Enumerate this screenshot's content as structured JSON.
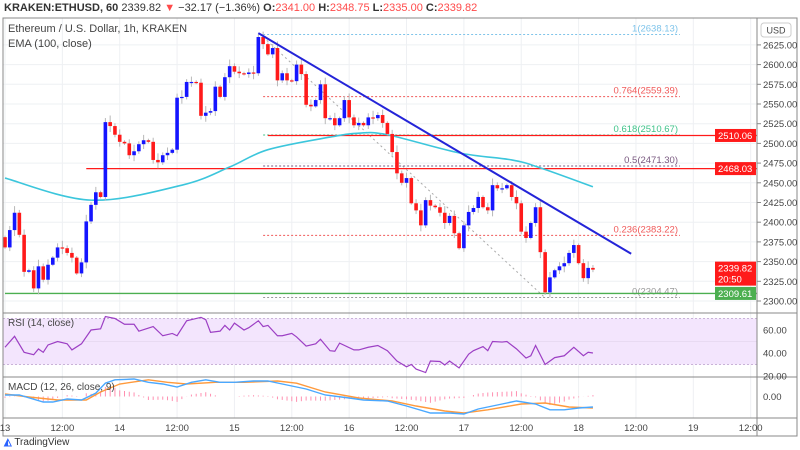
{
  "header": {
    "symbol": "KRAKEN:ETHUSD, 60",
    "last": "2339.82",
    "change": "−32.17 (−1.36%)",
    "open_label": "O:",
    "open": "2341.00",
    "high_label": "H:",
    "high": "2348.75",
    "low_label": "L:",
    "low": "2335.00",
    "close_label": "C:",
    "close": "2339.82"
  },
  "legend": {
    "title": "Ethereum / U.S. Dollar, 1h, KRAKEN",
    "ema": "EMA (100, close)",
    "rsi": "RSI (14, close)",
    "macd": "MACD (12, 26, close, 9)"
  },
  "footer": {
    "brand": "TradingView"
  },
  "colors": {
    "up": "#1515ff",
    "down": "#ff1a1a",
    "ema": "#3cc6dc",
    "trendline": "#2424d8",
    "support": "#4caf50",
    "resistance": "#ff2020",
    "rsi": "#9c3fc4",
    "rsi_band": "#f3e5fd",
    "macd": "#4aa8ff",
    "signal": "#ff9a3c",
    "histogram": "#ff8fb0"
  },
  "chart_data": [
    {
      "type": "candlestick",
      "title": "Ethereum / U.S. Dollar, 1h, KRAKEN",
      "currency": "USD",
      "start": "13 00:00",
      "interval": "1h",
      "first_open": 2381,
      "closes": [
        2368,
        2390,
        2412,
        2384,
        2337,
        2339,
        2316,
        2344,
        2327,
        2346,
        2355,
        2368,
        2367,
        2361,
        2355,
        2335,
        2349,
        2401,
        2422,
        2438,
        2432,
        2527,
        2522,
        2511,
        2502,
        2500,
        2485,
        2490,
        2499,
        2504,
        2502,
        2479,
        2476,
        2485,
        2488,
        2492,
        2558,
        2559,
        2578,
        2578,
        2577,
        2535,
        2539,
        2541,
        2572,
        2559,
        2584,
        2598,
        2591,
        2589,
        2588,
        2590,
        2589,
        2635,
        2626,
        2613,
        2621,
        2580,
        2589,
        2580,
        2579,
        2600,
        2588,
        2549,
        2547,
        2555,
        2575,
        2532,
        2532,
        2523,
        2532,
        2555,
        2533,
        2523,
        2526,
        2523,
        2533,
        2532,
        2536,
        2526,
        2512,
        2489,
        2462,
        2450,
        2456,
        2424,
        2415,
        2396,
        2428,
        2421,
        2419,
        2412,
        2399,
        2408,
        2386,
        2367,
        2396,
        2413,
        2418,
        2432,
        2419,
        2415,
        2447,
        2443,
        2443,
        2447,
        2432,
        2424,
        2388,
        2380,
        2399,
        2419,
        2362,
        2311,
        2330,
        2339,
        2344,
        2348,
        2361,
        2371,
        2348,
        2329,
        2342,
        2339.82
      ],
      "ema": {
        "label": "EMA (100, close)",
        "points": [
          [
            "13 00:00",
            2456
          ],
          [
            "13 18:00",
            2428
          ],
          [
            "14 13:00",
            2447
          ],
          [
            "14 23:00",
            2470
          ],
          [
            "15 07:00",
            2492
          ],
          [
            "15 20:00",
            2508
          ],
          [
            "16 02:00",
            2513
          ],
          [
            "16 08:00",
            2511
          ],
          [
            "16 23:00",
            2488
          ],
          [
            "17 10:00",
            2479
          ],
          [
            "17 16:00",
            2469
          ],
          [
            "18 03:00",
            2445
          ]
        ]
      },
      "trendline": {
        "from": [
          "15 05:00",
          2640
        ],
        "to": [
          "18 11:00",
          2360
        ]
      },
      "horizontal_levels": [
        {
          "price": 2510.06,
          "label": "2510.06",
          "from": "15 07:00",
          "color": "#ff1a1a"
        },
        {
          "price": 2468.03,
          "label": "2468.03",
          "from": "13 17:00",
          "color": "#ff1a1a"
        },
        {
          "price": 2309.61,
          "label": "2309.61",
          "from": "13 00:00",
          "color": "#4caf50"
        }
      ],
      "fibonacci": {
        "from": [
          "15 06:00",
          2635
        ],
        "to": [
          "17 17:00",
          2304
        ],
        "levels": [
          {
            "label": "1(2638.13)",
            "price": 2638.13,
            "color": "#7fc4ea"
          },
          {
            "label": "0.764(2559.39)",
            "price": 2559.39,
            "color": "#f05a5a"
          },
          {
            "label": "0.618(2510.67)",
            "price": 2510.67,
            "color": "#3fc38a"
          },
          {
            "label": "0.5(2471.30)",
            "price": 2471.3,
            "color": "#7a5a80"
          },
          {
            "label": "0.236(2383.22)",
            "price": 2383.22,
            "color": "#f05a5a"
          },
          {
            "label": "0(2304.47)",
            "price": 2304.47,
            "color": "#999999"
          }
        ]
      },
      "last_price_badge": {
        "price": "2339.82",
        "countdown": "20:50"
      },
      "y_ticks": [
        "2300.00",
        "2325.00",
        "2350.00",
        "2375.00",
        "2400.00",
        "2425.00",
        "2450.00",
        "2475.00",
        "2500.00",
        "2525.00",
        "2550.00",
        "2575.00",
        "2600.00",
        "2625.00"
      ],
      "x_ticks": [
        "13",
        "12:00",
        "14",
        "12:00",
        "15",
        "12:00",
        "16",
        "12:00",
        "17",
        "12:00",
        "18",
        "12:00",
        "19",
        "12:00"
      ],
      "x_tick_times": [
        "13 00:00",
        "13 12:00",
        "14 00:00",
        "14 12:00",
        "15 00:00",
        "15 12:00",
        "16 00:00",
        "16 12:00",
        "17 00:00",
        "17 12:00",
        "18 00:00",
        "18 12:00",
        "19 00:00",
        "19 12:00"
      ]
    },
    {
      "type": "line",
      "title": "RSI (14, close)",
      "band": [
        30,
        70
      ],
      "y_ticks": [
        "60.00",
        "40.00",
        "20.00"
      ],
      "points": [
        [
          "13 00:00",
          45
        ],
        [
          "13 02:00",
          54.5
        ],
        [
          "13 04:00",
          40.6
        ],
        [
          "13 06:00",
          38.5
        ],
        [
          "13 07:00",
          43.5
        ],
        [
          "13 08:00",
          40.6
        ],
        [
          "13 09:00",
          47
        ],
        [
          "13 11:00",
          50
        ],
        [
          "13 13:00",
          48
        ],
        [
          "13 14:00",
          42.7
        ],
        [
          "13 16:00",
          48
        ],
        [
          "13 18:00",
          60
        ],
        [
          "13 20:00",
          61
        ],
        [
          "13 21:00",
          71.7
        ],
        [
          "13 23:00",
          70
        ],
        [
          "14 01:00",
          65
        ],
        [
          "14 03:00",
          65
        ],
        [
          "14 04:00",
          59
        ],
        [
          "14 07:00",
          63
        ],
        [
          "14 09:00",
          55
        ],
        [
          "14 11:00",
          57
        ],
        [
          "14 12:00",
          55
        ],
        [
          "14 14:00",
          68
        ],
        [
          "14 17:00",
          71
        ],
        [
          "14 18:00",
          69
        ],
        [
          "14 19:00",
          58
        ],
        [
          "14 21:00",
          59
        ],
        [
          "14 22:00",
          64
        ],
        [
          "14 23:00",
          60
        ],
        [
          "15 00:00",
          66
        ],
        [
          "15 02:00",
          60
        ],
        [
          "15 03:00",
          62
        ],
        [
          "15 05:00",
          68
        ],
        [
          "15 06:00",
          63
        ],
        [
          "15 07:00",
          64
        ],
        [
          "15 09:00",
          55
        ],
        [
          "15 10:00",
          55
        ],
        [
          "15 12:00",
          57
        ],
        [
          "15 13:00",
          54
        ],
        [
          "15 15:00",
          46
        ],
        [
          "15 17:00",
          48
        ],
        [
          "15 18:00",
          52
        ],
        [
          "15 20:00",
          42
        ],
        [
          "15 21:00",
          41.5
        ],
        [
          "15 22:00",
          48.6
        ],
        [
          "16 01:00",
          42.7
        ],
        [
          "16 02:00",
          42.7
        ],
        [
          "16 04:00",
          45
        ],
        [
          "16 06:00",
          46.5
        ],
        [
          "16 08:00",
          42
        ],
        [
          "16 10:00",
          33
        ],
        [
          "16 12:00",
          28
        ],
        [
          "16 13:00",
          30
        ],
        [
          "16 14:00",
          26
        ],
        [
          "16 16:00",
          23
        ],
        [
          "16 17:00",
          33
        ],
        [
          "16 19:00",
          32.6
        ],
        [
          "16 20:00",
          29.6
        ],
        [
          "16 21:00",
          33
        ],
        [
          "16 23:00",
          27
        ],
        [
          "17 01:00",
          39
        ],
        [
          "17 02:00",
          42
        ],
        [
          "17 04:00",
          45.6
        ],
        [
          "17 05:00",
          42
        ],
        [
          "17 06:00",
          50
        ],
        [
          "17 08:00",
          49.5
        ],
        [
          "17 09:00",
          50
        ],
        [
          "17 11:00",
          43.6
        ],
        [
          "17 13:00",
          35.6
        ],
        [
          "17 14:00",
          37.6
        ],
        [
          "17 15:00",
          46.5
        ],
        [
          "17 17:00",
          30
        ],
        [
          "17 19:00",
          36
        ],
        [
          "17 21:00",
          37.6
        ],
        [
          "17 23:00",
          45
        ],
        [
          "18 01:00",
          37.6
        ],
        [
          "18 02:00",
          40.6
        ],
        [
          "18 03:00",
          40
        ]
      ]
    },
    {
      "type": "line",
      "title": "MACD (12, 26, close, 9)",
      "y_ticks": [
        "0.00"
      ],
      "macd": [
        [
          "13 00:00",
          1.8
        ],
        [
          "13 03:00",
          1.8
        ],
        [
          "13 08:00",
          -6.6
        ],
        [
          "13 10:00",
          -6.6
        ],
        [
          "13 13:00",
          -3
        ],
        [
          "13 16:00",
          -4.2
        ],
        [
          "13 19:00",
          4
        ],
        [
          "13 21:00",
          16
        ],
        [
          "13 23:00",
          20
        ],
        [
          "14 03:00",
          21
        ],
        [
          "14 06:00",
          17
        ],
        [
          "14 09:00",
          15
        ],
        [
          "14 12:00",
          11.4
        ],
        [
          "14 15:00",
          17
        ],
        [
          "14 18:00",
          20
        ],
        [
          "14 21:00",
          17
        ],
        [
          "15 00:00",
          17
        ],
        [
          "15 04:00",
          18.6
        ],
        [
          "15 07:00",
          18.6
        ],
        [
          "15 11:00",
          13.8
        ],
        [
          "15 15:00",
          9
        ],
        [
          "15 19:00",
          1.8
        ],
        [
          "16 00:00",
          -1.8
        ],
        [
          "16 03:00",
          -4.2
        ],
        [
          "16 08:00",
          -5.4
        ],
        [
          "16 12:00",
          -11.4
        ],
        [
          "16 17:00",
          -19.8
        ],
        [
          "16 21:00",
          -19.8
        ],
        [
          "17 00:00",
          -21
        ],
        [
          "17 03:00",
          -15
        ],
        [
          "17 08:00",
          -9
        ],
        [
          "17 11:00",
          -5.4
        ],
        [
          "17 15:00",
          -9
        ],
        [
          "17 18:00",
          -16
        ],
        [
          "17 21:00",
          -16
        ],
        [
          "18 00:00",
          -13.8
        ],
        [
          "18 03:00",
          -12.6
        ]
      ],
      "signal": [
        [
          "13 00:00",
          3
        ],
        [
          "13 05:00",
          -0.6
        ],
        [
          "13 11:00",
          -4.2
        ],
        [
          "13 17:00",
          -4.2
        ],
        [
          "13 20:00",
          5.4
        ],
        [
          "14 00:00",
          15
        ],
        [
          "14 06:00",
          20
        ],
        [
          "14 10:00",
          17
        ],
        [
          "14 14:00",
          15
        ],
        [
          "14 20:00",
          17
        ],
        [
          "15 02:00",
          17
        ],
        [
          "15 09:00",
          18.6
        ],
        [
          "15 13:00",
          16
        ],
        [
          "15 19:00",
          5.4
        ],
        [
          "16 02:00",
          -1.8
        ],
        [
          "16 09:00",
          -5.4
        ],
        [
          "16 14:00",
          -11.4
        ],
        [
          "16 20:00",
          -17.4
        ],
        [
          "17 00:00",
          -19.8
        ],
        [
          "17 05:00",
          -16
        ],
        [
          "17 12:00",
          -9
        ],
        [
          "17 17:00",
          -7.8
        ],
        [
          "17 22:00",
          -12.6
        ],
        [
          "18 03:00",
          -13.8
        ]
      ]
    }
  ]
}
